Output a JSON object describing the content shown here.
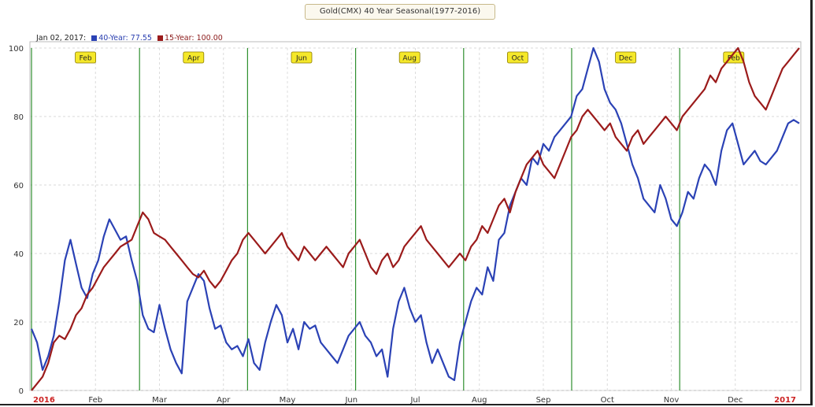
{
  "chart_data": {
    "type": "line",
    "title": "Gold(CMX) 40 Year Seasonal(1977-2016)",
    "readout_date": "Jan 02, 2017:",
    "series": [
      {
        "name": "40-Year",
        "readout": "77.55",
        "color": "#2b42b5",
        "values": [
          18,
          14,
          6,
          10,
          16,
          26,
          38,
          44,
          37,
          30,
          27,
          34,
          38,
          45,
          50,
          47,
          44,
          45,
          38,
          32,
          22,
          18,
          17,
          25,
          18,
          12,
          8,
          5,
          26,
          30,
          34,
          32,
          24,
          18,
          19,
          14,
          12,
          13,
          10,
          15,
          8,
          6,
          14,
          20,
          25,
          22,
          14,
          18,
          12,
          20,
          18,
          19,
          14,
          12,
          10,
          8,
          12,
          16,
          18,
          20,
          16,
          14,
          10,
          12,
          4,
          18,
          26,
          30,
          24,
          20,
          22,
          14,
          8,
          12,
          8,
          4,
          3,
          14,
          20,
          26,
          30,
          28,
          36,
          32,
          44,
          46,
          54,
          58,
          62,
          60,
          68,
          66,
          72,
          70,
          74,
          76,
          78,
          80,
          86,
          88,
          94,
          100,
          96,
          88,
          84,
          82,
          78,
          72,
          66,
          62,
          56,
          54,
          52,
          60,
          56,
          50,
          48,
          52,
          58,
          56,
          62,
          66,
          64,
          60,
          70,
          76,
          78,
          72,
          66,
          68,
          70,
          67,
          66,
          68,
          70,
          74,
          78,
          79,
          78
        ]
      },
      {
        "name": "15-Year",
        "readout": "100.00",
        "color": "#9b1b1b",
        "values": [
          0,
          2,
          4,
          8,
          14,
          16,
          15,
          18,
          22,
          24,
          28,
          30,
          33,
          36,
          38,
          40,
          42,
          43,
          44,
          48,
          52,
          50,
          46,
          45,
          44,
          42,
          40,
          38,
          36,
          34,
          33,
          35,
          32,
          30,
          32,
          35,
          38,
          40,
          44,
          46,
          44,
          42,
          40,
          42,
          44,
          46,
          42,
          40,
          38,
          42,
          40,
          38,
          40,
          42,
          40,
          38,
          36,
          40,
          42,
          44,
          40,
          36,
          34,
          38,
          40,
          36,
          38,
          42,
          44,
          46,
          48,
          44,
          42,
          40,
          38,
          36,
          38,
          40,
          38,
          42,
          44,
          48,
          46,
          50,
          54,
          56,
          52,
          58,
          62,
          66,
          68,
          70,
          66,
          64,
          62,
          66,
          70,
          74,
          76,
          80,
          82,
          80,
          78,
          76,
          78,
          74,
          72,
          70,
          74,
          76,
          72,
          74,
          76,
          78,
          80,
          78,
          76,
          80,
          82,
          84,
          86,
          88,
          92,
          90,
          94,
          96,
          98,
          100,
          96,
          90,
          86,
          84,
          82,
          86,
          90,
          94,
          96,
          98,
          100
        ]
      }
    ],
    "x_axis_labels": [
      "2016",
      "Feb",
      "Mar",
      "Apr",
      "May",
      "Jun",
      "Jul",
      "Aug",
      "Sep",
      "Oct",
      "Nov",
      "Dec",
      "2017"
    ],
    "month_flags": [
      "Feb",
      "Apr",
      "Jun",
      "Aug",
      "Oct",
      "Dec",
      "Feb"
    ],
    "y_ticks": [
      0,
      20,
      40,
      60,
      80,
      100
    ],
    "ylim": [
      0,
      100
    ],
    "grid": true
  }
}
